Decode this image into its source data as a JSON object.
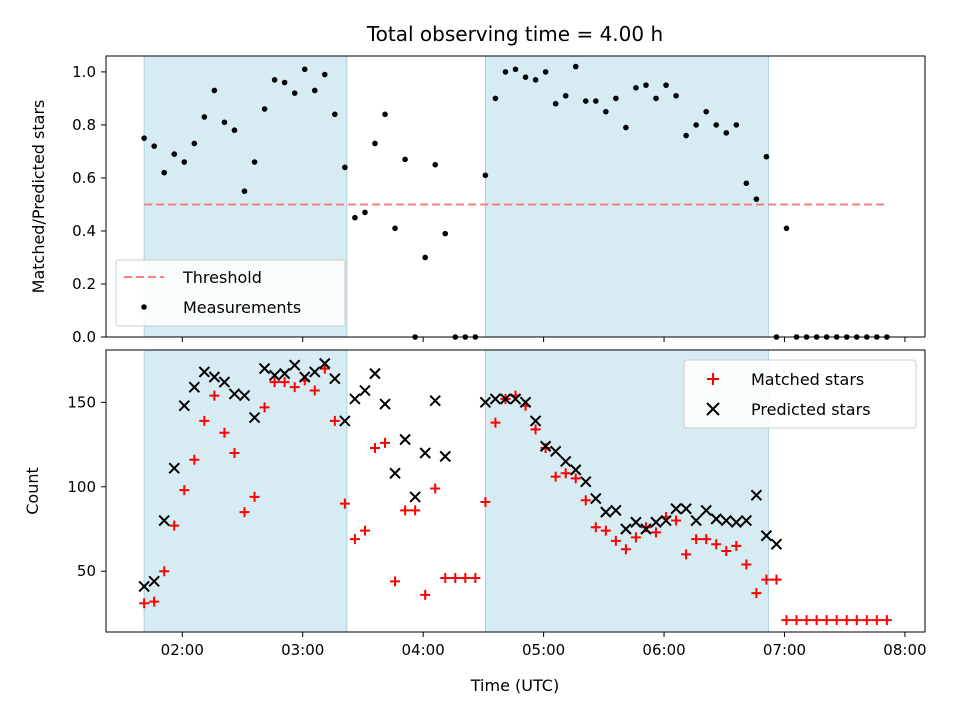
{
  "chart_data": [
    {
      "type": "scatter",
      "title": "Total observing time = 4.00 h",
      "ylabel": "Matched/Predicted stars",
      "xlabel": "",
      "xlim": [
        "01:22",
        "08:10"
      ],
      "ylim": [
        0,
        1.06
      ],
      "yticks": [
        0.0,
        0.2,
        0.4,
        0.6,
        0.8,
        1.0
      ],
      "ytick_labels": [
        "0.0",
        "0.2",
        "0.4",
        "0.6",
        "0.8",
        "1.0"
      ],
      "legend": {
        "placement": "lower-left",
        "entries": [
          "Threshold",
          "Measurements"
        ]
      },
      "threshold": {
        "name": "Threshold",
        "value": 0.5,
        "x_start": "01:41",
        "x_end": "07:50",
        "color": "#f08080"
      },
      "shaded_intervals": [
        [
          "01:41",
          "03:22"
        ],
        [
          "04:31",
          "06:52"
        ]
      ],
      "series": [
        {
          "name": "Measurements",
          "color": "#000000",
          "x": [
            "01:41",
            "01:46",
            "01:51",
            "01:56",
            "02:01",
            "02:06",
            "02:11",
            "02:16",
            "02:21",
            "02:26",
            "02:31",
            "02:36",
            "02:41",
            "02:46",
            "02:51",
            "02:56",
            "03:01",
            "03:06",
            "03:11",
            "03:16",
            "03:21",
            "03:26",
            "03:31",
            "03:36",
            "03:41",
            "03:46",
            "03:51",
            "03:56",
            "04:01",
            "04:06",
            "04:11",
            "04:16",
            "04:21",
            "04:26",
            "04:31",
            "04:36",
            "04:41",
            "04:46",
            "04:51",
            "04:56",
            "05:01",
            "05:06",
            "05:11",
            "05:16",
            "05:21",
            "05:26",
            "05:31",
            "05:36",
            "05:41",
            "05:46",
            "05:51",
            "05:56",
            "06:01",
            "06:06",
            "06:11",
            "06:16",
            "06:21",
            "06:26",
            "06:31",
            "06:36",
            "06:41",
            "06:46",
            "06:51",
            "06:56",
            "07:01",
            "07:06",
            "07:11",
            "07:16",
            "07:21",
            "07:26",
            "07:31",
            "07:36",
            "07:41",
            "07:46",
            "07:51"
          ],
          "y": [
            0.75,
            0.72,
            0.62,
            0.69,
            0.66,
            0.73,
            0.83,
            0.93,
            0.81,
            0.78,
            0.55,
            0.66,
            0.86,
            0.97,
            0.96,
            0.92,
            1.01,
            0.93,
            0.99,
            0.84,
            0.64,
            0.45,
            0.47,
            0.73,
            0.84,
            0.41,
            0.67,
            0.0,
            0.3,
            0.65,
            0.39,
            0.0,
            0.0,
            0.0,
            0.61,
            0.9,
            1.0,
            1.01,
            0.98,
            0.97,
            1.0,
            0.88,
            0.91,
            1.02,
            0.89,
            0.89,
            0.85,
            0.9,
            0.79,
            0.94,
            0.95,
            0.9,
            0.95,
            0.91,
            0.76,
            0.8,
            0.85,
            0.8,
            0.77,
            0.8,
            0.58,
            0.52,
            0.68,
            0.0,
            0.41,
            0.0,
            0.0,
            0.0,
            0.0,
            0.0,
            0.0,
            0.0,
            0.0,
            0.0,
            0.0
          ]
        }
      ]
    },
    {
      "type": "scatter",
      "title": "",
      "xlabel": "Time (UTC)",
      "ylabel": "Count",
      "xlim": [
        "01:22",
        "08:10"
      ],
      "ylim": [
        14,
        181
      ],
      "xticks": [
        "02:00",
        "03:00",
        "04:00",
        "05:00",
        "06:00",
        "07:00",
        "08:00"
      ],
      "yticks": [
        50,
        100,
        150
      ],
      "ytick_labels": [
        "50",
        "100",
        "150"
      ],
      "legend": {
        "placement": "top-right",
        "entries": [
          "Matched stars",
          "Predicted stars"
        ]
      },
      "shaded_intervals": [
        [
          "01:41",
          "03:22"
        ],
        [
          "04:31",
          "06:52"
        ]
      ],
      "series": [
        {
          "name": "Matched stars",
          "marker": "+",
          "color": "#ff0000",
          "x": [
            "01:41",
            "01:46",
            "01:51",
            "01:56",
            "02:01",
            "02:06",
            "02:11",
            "02:16",
            "02:21",
            "02:26",
            "02:31",
            "02:36",
            "02:41",
            "02:46",
            "02:51",
            "02:56",
            "03:01",
            "03:06",
            "03:11",
            "03:16",
            "03:21",
            "03:26",
            "03:31",
            "03:36",
            "03:41",
            "03:46",
            "03:51",
            "03:56",
            "04:01",
            "04:06",
            "04:11",
            "04:16",
            "04:21",
            "04:26",
            "04:31",
            "04:36",
            "04:41",
            "04:46",
            "04:51",
            "04:56",
            "05:01",
            "05:06",
            "05:11",
            "05:16",
            "05:21",
            "05:26",
            "05:31",
            "05:36",
            "05:41",
            "05:46",
            "05:51",
            "05:56",
            "06:01",
            "06:06",
            "06:11",
            "06:16",
            "06:21",
            "06:26",
            "06:31",
            "06:36",
            "06:41",
            "06:46",
            "06:51",
            "06:56",
            "07:01",
            "07:06",
            "07:11",
            "07:16",
            "07:21",
            "07:26",
            "07:31",
            "07:36",
            "07:41",
            "07:46",
            "07:51"
          ],
          "y": [
            31,
            32,
            50,
            77,
            98,
            116,
            139,
            154,
            132,
            120,
            85,
            94,
            147,
            162,
            162,
            159,
            163,
            157,
            170,
            139,
            90,
            69,
            74,
            123,
            126,
            44,
            86,
            86,
            36,
            99,
            46,
            46,
            46,
            46,
            91,
            138,
            152,
            154,
            148,
            134,
            123,
            106,
            108,
            105,
            92,
            76,
            74,
            68,
            63,
            70,
            76,
            73,
            82,
            80,
            60,
            69,
            69,
            66,
            62,
            65,
            54,
            37,
            45,
            45,
            21,
            21,
            21,
            21,
            21,
            21,
            21,
            21,
            21,
            21,
            21
          ]
        },
        {
          "name": "Predicted stars",
          "marker": "x",
          "color": "#000000",
          "x": [
            "01:41",
            "01:46",
            "01:51",
            "01:56",
            "02:01",
            "02:06",
            "02:11",
            "02:16",
            "02:21",
            "02:26",
            "02:31",
            "02:36",
            "02:41",
            "02:46",
            "02:51",
            "02:56",
            "03:01",
            "03:06",
            "03:11",
            "03:16",
            "03:21",
            "03:26",
            "03:31",
            "03:36",
            "03:41",
            "03:46",
            "03:51",
            "03:56",
            "04:01",
            "04:06",
            "04:11",
            "04:31",
            "04:36",
            "04:41",
            "04:46",
            "04:51",
            "04:56",
            "05:01",
            "05:06",
            "05:11",
            "05:16",
            "05:21",
            "05:26",
            "05:31",
            "05:36",
            "05:41",
            "05:46",
            "05:51",
            "05:56",
            "06:01",
            "06:06",
            "06:11",
            "06:16",
            "06:21",
            "06:26",
            "06:31",
            "06:36",
            "06:41",
            "06:46",
            "06:51",
            "06:56"
          ],
          "y": [
            41,
            44,
            80,
            111,
            148,
            159,
            168,
            165,
            162,
            155,
            154,
            141,
            170,
            166,
            167,
            172,
            165,
            168,
            173,
            164,
            139,
            152,
            157,
            167,
            149,
            108,
            128,
            94,
            120,
            151,
            118,
            150,
            152,
            152,
            152,
            150,
            139,
            124,
            121,
            115,
            110,
            103,
            93,
            85,
            86,
            75,
            79,
            75,
            79,
            80,
            87,
            87,
            80,
            86,
            81,
            80,
            79,
            80,
            95,
            71,
            66
          ]
        }
      ]
    }
  ]
}
